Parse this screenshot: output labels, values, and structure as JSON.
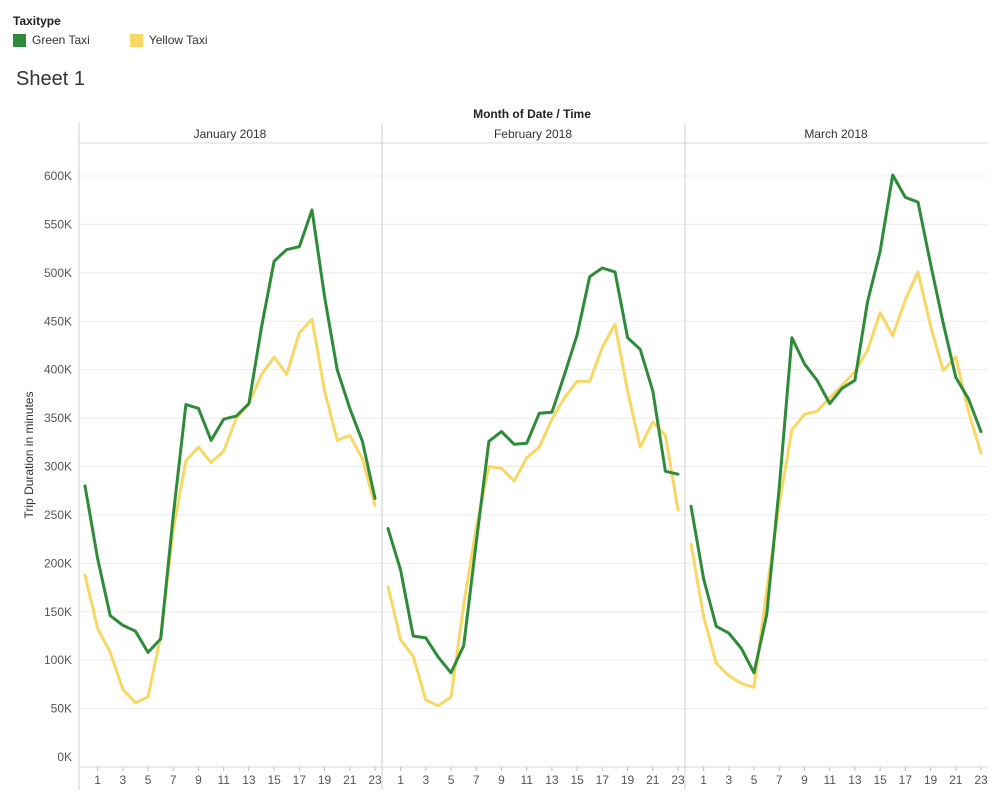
{
  "legend": {
    "title": "Taxitype",
    "items": [
      {
        "label": "Green Taxi",
        "color": "#2e8b3a"
      },
      {
        "label": "Yellow Taxi",
        "color": "#f8d764"
      }
    ]
  },
  "sheet_title": "Sheet 1",
  "chart_data": {
    "type": "line",
    "column_header": "Month of Date / Time",
    "ylabel": "Trip Duration in minutes",
    "ylim": [
      0,
      620000
    ],
    "yticks": [
      0,
      50000,
      100000,
      150000,
      200000,
      250000,
      300000,
      350000,
      400000,
      450000,
      500000,
      550000,
      600000
    ],
    "ytick_labels": [
      "0K",
      "50K",
      "100K",
      "150K",
      "200K",
      "250K",
      "300K",
      "350K",
      "400K",
      "450K",
      "500K",
      "550K",
      "600K"
    ],
    "x": [
      0,
      1,
      2,
      3,
      4,
      5,
      6,
      7,
      8,
      9,
      10,
      11,
      12,
      13,
      14,
      15,
      16,
      17,
      18,
      19,
      20,
      21,
      22,
      23
    ],
    "xtick_labels": [
      "1",
      "3",
      "5",
      "7",
      "9",
      "11",
      "13",
      "15",
      "17",
      "19",
      "21",
      "23"
    ],
    "xticks": [
      1,
      3,
      5,
      7,
      9,
      11,
      13,
      15,
      17,
      19,
      21,
      23
    ],
    "grid": true,
    "legend_position": "top-left",
    "panels": [
      {
        "label": "January 2018",
        "series": [
          {
            "name": "Green Taxi",
            "color": "#2e8b3a",
            "values": [
              280000,
              205000,
              146000,
              136000,
              130000,
              108000,
              122000,
              250000,
              364000,
              360000,
              327000,
              349000,
              352000,
              365000,
              444000,
              512000,
              524000,
              527000,
              565000,
              475000,
              400000,
              360000,
              326000,
              267000
            ]
          },
          {
            "name": "Yellow Taxi",
            "color": "#f8d764",
            "values": [
              188000,
              133000,
              108000,
              70000,
              56000,
              62000,
              125000,
              235000,
              306000,
              320000,
              304000,
              316000,
              350000,
              365000,
              395000,
              413000,
              395000,
              438000,
              452000,
              378000,
              327000,
              332000,
              308000,
              260000
            ]
          }
        ]
      },
      {
        "label": "February 2018",
        "series": [
          {
            "name": "Green Taxi",
            "color": "#2e8b3a",
            "values": [
              236000,
              193000,
              125000,
              123000,
              103000,
              87000,
              115000,
              222000,
              326000,
              336000,
              323000,
              324000,
              355000,
              356000,
              395000,
              436000,
              496000,
              505000,
              501000,
              433000,
              421000,
              378000,
              295000,
              292000
            ]
          },
          {
            "name": "Yellow Taxi",
            "color": "#f8d764",
            "values": [
              176000,
              121000,
              104000,
              59000,
              53000,
              62000,
              157000,
              237000,
              300000,
              298000,
              285000,
              309000,
              320000,
              349000,
              371000,
              388000,
              388000,
              423000,
              447000,
              378000,
              320000,
              346000,
              332000,
              255000
            ]
          }
        ]
      },
      {
        "label": "March 2018",
        "series": [
          {
            "name": "Green Taxi",
            "color": "#2e8b3a",
            "values": [
              259000,
              184000,
              135000,
              128000,
              112000,
              87000,
              147000,
              279000,
              433000,
              406000,
              389000,
              365000,
              381000,
              389000,
              470000,
              522000,
              601000,
              578000,
              573000,
              509000,
              448000,
              392000,
              370000,
              336000
            ]
          },
          {
            "name": "Yellow Taxi",
            "color": "#f8d764",
            "values": [
              220000,
              145000,
              97000,
              84000,
              76000,
              72000,
              172000,
              261000,
              338000,
              354000,
              357000,
              371000,
              384000,
              398000,
              420000,
              459000,
              435000,
              472000,
              501000,
              445000,
              399000,
              413000,
              357000,
              314000
            ]
          }
        ]
      }
    ]
  }
}
